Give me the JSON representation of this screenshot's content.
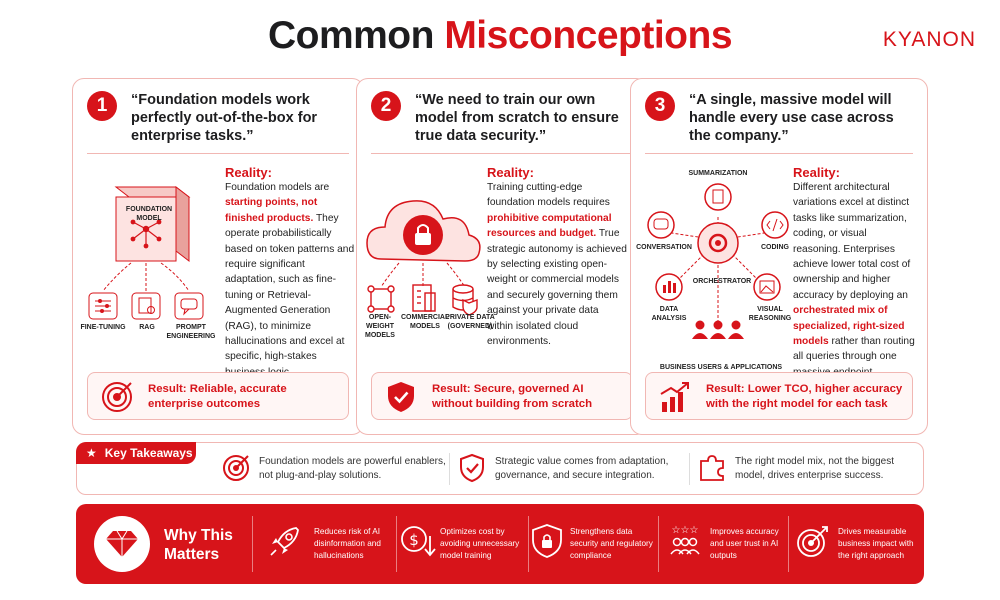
{
  "header": {
    "title_word1": "Common",
    "title_word2": "Misconceptions",
    "logo": "KYANON"
  },
  "cards": [
    {
      "number": "1",
      "quote": "“Foundation models work perfectly out-of-the-box for enterprise tasks.”",
      "reality_heading": "Reality:",
      "reality_parts": [
        "Foundation models are ",
        "starting points, not finished products.",
        " They operate probabilistically based on token patterns and require significant adaptation, such as fine-tuning or Retrieval-Augmented Generation (RAG), to minimize hallucinations and excel at specific, high-stakes business logic."
      ],
      "diagram": {
        "box_label": "FOUNDATION MODEL",
        "labels": [
          "FINE-TUNING",
          "RAG",
          "PROMPT ENGINEERING"
        ]
      },
      "result_label": "Result:",
      "result_text": "Reliable, accurate enterprise outcomes"
    },
    {
      "number": "2",
      "quote": "“We need to train our own model from scratch to ensure true data security.”",
      "reality_heading": "Reality:",
      "reality_parts": [
        "Training cutting-edge foundation models requires ",
        "prohibitive computational resources and budget.",
        " True strategic autonomy is achieved by selecting existing open-weight or commercial models and securely governing them against your private data within isolated cloud environments."
      ],
      "diagram": {
        "labels": [
          "OPEN-WEIGHT MODELS",
          "COMMERCIAL MODELS",
          "PRIVATE DATA (GOVERNED)"
        ]
      },
      "result_label": "Result:",
      "result_text": "Secure, governed AI without building from scratch"
    },
    {
      "number": "3",
      "quote": "“A single, massive model will handle every use case across the company.”",
      "reality_heading": "Reality:",
      "reality_parts": [
        "Different architectural variations excel at distinct tasks like summarization, coding, or visual reasoning. Enterprises achieve lower total cost of ownership and higher accuracy by deploying an ",
        "orchestrated mix of specialized, right-sized models",
        " rather than routing all queries through one massive endpoint."
      ],
      "diagram": {
        "center": "ORCHESTRATOR",
        "labels": [
          "SUMMARIZATION",
          "CONVERSATION",
          "CODING",
          "DATA ANALYSIS",
          "VISUAL REASONING"
        ],
        "bottom": "BUSINESS USERS & APPLICATIONS"
      },
      "result_label": "Result:",
      "result_text": "Lower TCO, higher accuracy with the right model for each task"
    }
  ],
  "takeaways": {
    "tab_label": "Key Takeaways",
    "items": [
      "Foundation models are powerful enablers, not plug-and-play solutions.",
      "Strategic value comes from adaptation, governance, and secure integration.",
      "The right model mix, not the biggest model, drives enterprise success."
    ]
  },
  "why": {
    "title": "Why This Matters",
    "items": [
      "Reduces risk of AI disinformation and hallucinations",
      "Optimizes cost by avoiding unnecessary model training",
      "Strengthens data security and regulatory compliance",
      "Improves accuracy and user trust in AI outputs",
      "Drives measurable business impact with the right approach"
    ]
  },
  "colors": {
    "accent": "#d7141a",
    "border": "#f1b7b3",
    "result_bg": "#fff6f5"
  }
}
